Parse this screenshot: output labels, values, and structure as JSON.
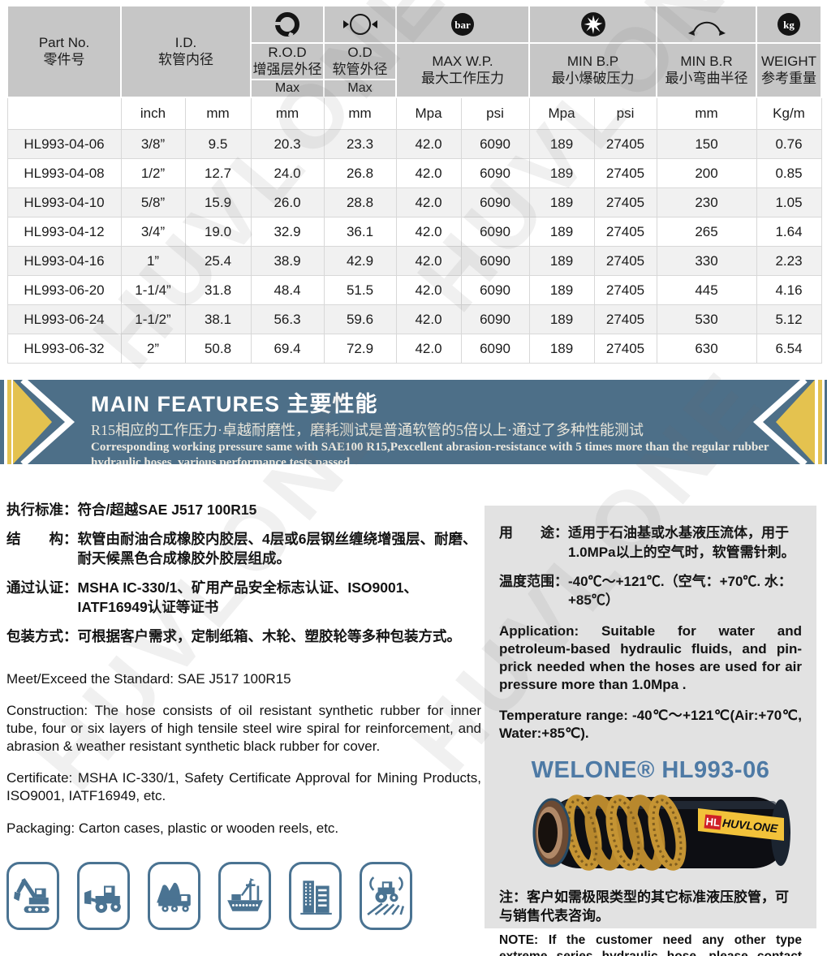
{
  "page": {
    "watermark": "HUVLONE"
  },
  "table": {
    "header": {
      "part_no_en": "Part No.",
      "part_no_zh": "零件号",
      "id_en": "I.D.",
      "id_zh": "软管内径",
      "rod_en": "R.O.D",
      "rod_zh": "增强层外径",
      "rod_max": "Max",
      "od_en": "O.D",
      "od_zh": "软管外径",
      "od_max": "Max",
      "wp_en": "MAX W.P.",
      "wp_zh": "最大工作压力",
      "bp_en": "MIN B.P",
      "bp_zh": "最小爆破压力",
      "br_en": "MIN B.R",
      "br_zh": "最小弯曲半径",
      "wt_en": "WEIGHT",
      "wt_zh": "参考重量",
      "bar_icon_label": "bar",
      "kg_icon_label": "kg"
    },
    "units": [
      "",
      "inch",
      "mm",
      "mm",
      "mm",
      "Mpa",
      "psi",
      "Mpa",
      "psi",
      "mm",
      "Kg/m"
    ],
    "rows": [
      [
        "HL993-04-06",
        "3/8”",
        "9.5",
        "20.3",
        "23.3",
        "42.0",
        "6090",
        "189",
        "27405",
        "150",
        "0.76"
      ],
      [
        "HL993-04-08",
        "1/2”",
        "12.7",
        "24.0",
        "26.8",
        "42.0",
        "6090",
        "189",
        "27405",
        "200",
        "0.85"
      ],
      [
        "HL993-04-10",
        "5/8”",
        "15.9",
        "26.0",
        "28.8",
        "42.0",
        "6090",
        "189",
        "27405",
        "230",
        "1.05"
      ],
      [
        "HL993-04-12",
        "3/4”",
        "19.0",
        "32.9",
        "36.1",
        "42.0",
        "6090",
        "189",
        "27405",
        "265",
        "1.64"
      ],
      [
        "HL993-04-16",
        "1”",
        "25.4",
        "38.9",
        "42.9",
        "42.0",
        "6090",
        "189",
        "27405",
        "330",
        "2.23"
      ],
      [
        "HL993-06-20",
        "1-1/4”",
        "31.8",
        "48.4",
        "51.5",
        "42.0",
        "6090",
        "189",
        "27405",
        "445",
        "4.16"
      ],
      [
        "HL993-06-24",
        "1-1/2”",
        "38.1",
        "56.3",
        "59.6",
        "42.0",
        "6090",
        "189",
        "27405",
        "530",
        "5.12"
      ],
      [
        "HL993-06-32",
        "2”",
        "50.8",
        "69.4",
        "72.9",
        "42.0",
        "6090",
        "189",
        "27405",
        "630",
        "6.54"
      ]
    ]
  },
  "banner": {
    "title_en": "MAIN FEATURES",
    "title_zh": "主要性能",
    "line_zh": "R15相应的工作压力·卓越耐磨性，磨耗测试是普通软管的5倍以上·通过了多种性能测试",
    "line_en1": "Corresponding working pressure same with SAE100 R15,Pexcellent abrasion-resistance with 5 times more than the regular rubber",
    "line_en2": "hydraulic hoses, various performance tests passed"
  },
  "left_column": {
    "zh_items": [
      {
        "label": "执行标准：",
        "text": "符合/超越SAE J517 100R15"
      },
      {
        "label": "结　　构：",
        "text": "软管由耐油合成橡胶内胶层、4层或6层钢丝缠绕增强层、耐磨、耐天候黑色合成橡胶外胶层组成。"
      },
      {
        "label": "通过认证：",
        "text": "MSHA IC-330/1、矿用产品安全标志认证、ISO9001、IATF16949认证等证书"
      },
      {
        "label": "包装方式：",
        "text": "可根据客户需求，定制纸箱、木轮、塑胶轮等多种包装方式。"
      }
    ],
    "en_paragraphs": [
      "Meet/Exceed the Standard: SAE J517 100R15",
      "Construction: The hose consists of oil resistant synthetic rubber for inner tube, four or six layers of high tensile steel wire spiral for reinforcement, and abrasion & weather resistant synthetic black rubber for cover.",
      "Certificate: MSHA IC-330/1, Safety Certificate Approval for Mining Products, ISO9001, IATF16949, etc.",
      "Packaging: Carton cases, plastic or wooden reels, etc."
    ]
  },
  "right_column": {
    "zh_items": [
      {
        "label": "用　　途：",
        "text": "适用于石油基或水基液压流体，用于1.0MPa以上的空气时，软管需针刺。"
      },
      {
        "label": "温度范围：",
        "text": "-40℃～+121℃.（空气：+70℃. 水：+85℃）"
      }
    ],
    "en_paragraphs": [
      "Application: Suitable for water and petroleum-based hydraulic fluids, and pin-prick needed when the hoses are used for air pressure more than 1.0Mpa .",
      "Temperature range: -40℃～+121℃(Air:+70℃, Water:+85℃)."
    ],
    "product_title": "WELONE® HL993-06",
    "hose_logo": "HL",
    "hose_label": "HUVLONE",
    "note_zh": "注：客户如需极限类型的其它标准液压胶管，可与销售代表咨询。",
    "note_en": "NOTE: If the customer need any other type extreme series hydraulic hose, please contact with our Sales."
  },
  "industry_icons": [
    "excavator-icon",
    "wheel-loader-icon",
    "dump-truck-icon",
    "ship-icon",
    "building-icon",
    "tractor-icon"
  ],
  "colors": {
    "banner_blue": "#4d6f88",
    "accent_yellow": "#e4c24f",
    "product_title_blue": "#4e7aa5",
    "industry_icon_blue": "#4a7392",
    "header_gray": "#c6c6c6",
    "row_stripe": "#f1f1f1",
    "panel_gray": "#e2e2e2"
  }
}
